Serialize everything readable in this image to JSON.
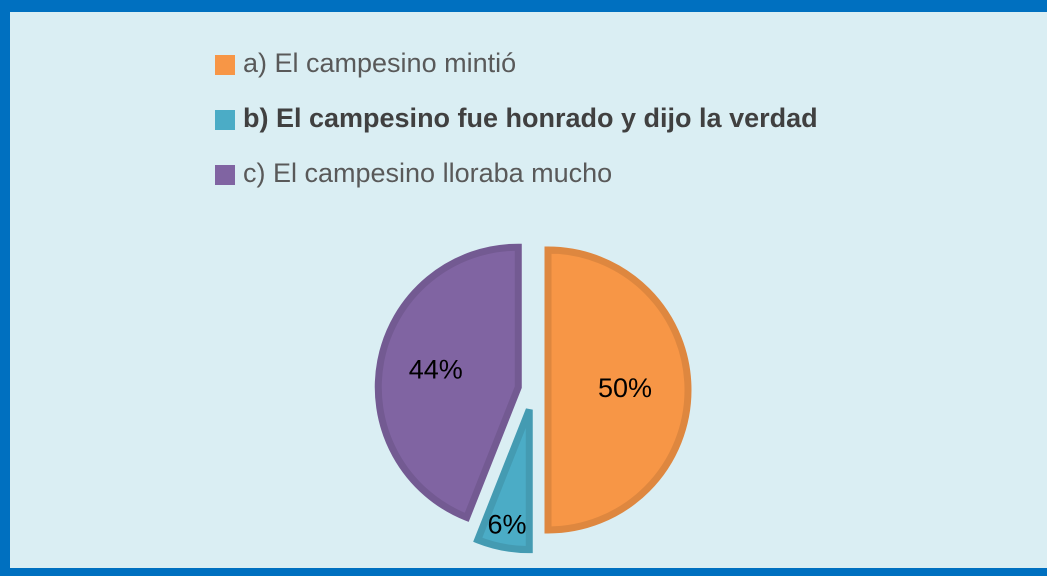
{
  "chart_data": {
    "type": "pie",
    "categories": [
      "a) El campesino mintió",
      "b) El campesino fue honrado y dijo la verdad",
      "c) El campesino lloraba mucho"
    ],
    "values": [
      50,
      6,
      44
    ],
    "value_labels": [
      "50%",
      "6%",
      "44%"
    ],
    "colors": [
      "#f79646",
      "#4bacc6",
      "#8064a2"
    ],
    "legend": "top"
  }
}
